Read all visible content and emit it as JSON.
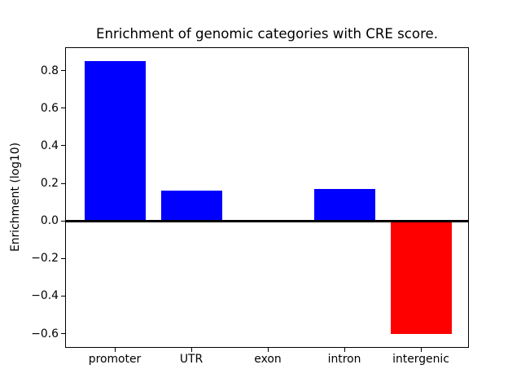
{
  "chart_data": {
    "type": "bar",
    "title": "Enrichment of genomic categories with CRE score.",
    "ylabel": "Enrichment (log10)",
    "xlabel": "",
    "categories": [
      "promoter",
      "UTR",
      "exon",
      "intron",
      "intergenic"
    ],
    "values": [
      0.85,
      0.16,
      0.0,
      0.17,
      -0.6
    ],
    "bar_colors": [
      "#0000ff",
      "#0000ff",
      "#0000ff",
      "#0000ff",
      "#ff0000"
    ],
    "positive_color": "#0000ff",
    "negative_color": "#ff0000",
    "yticks": [
      0.8,
      0.6,
      0.4,
      0.2,
      0.0,
      -0.2,
      -0.4,
      -0.6
    ],
    "ylim": [
      -0.68,
      0.92
    ],
    "zero_line": true,
    "grid": false,
    "legend": false,
    "axis_color": "#000000",
    "background_color": "#ffffff"
  }
}
